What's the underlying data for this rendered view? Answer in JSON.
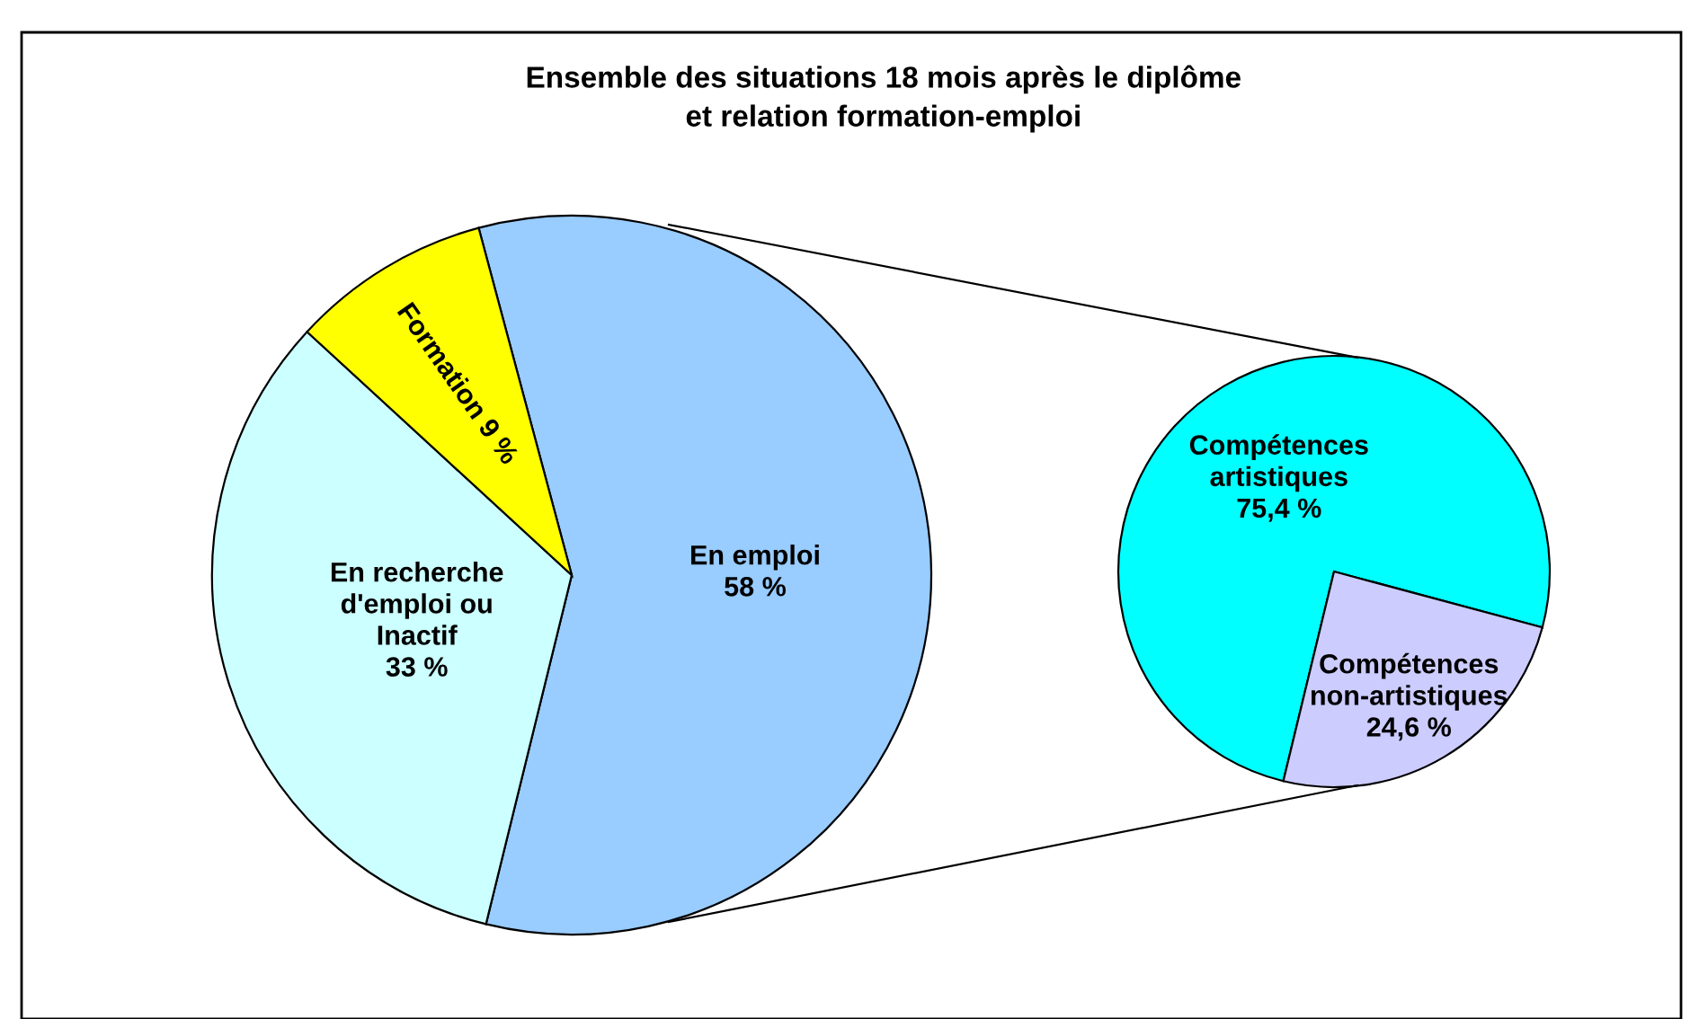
{
  "chart_data": [
    {
      "type": "pie",
      "title": "Ensemble des situations 18 mois après le diplôme\net relation formation-emploi",
      "categories": [
        "En emploi\n58 %",
        "En recherche\nd'emploi ou\nInactif\n33 %",
        "Formation 9 %"
      ],
      "values": [
        58,
        33,
        9
      ],
      "colors": [
        "#99ccff",
        "#ccffff",
        "#ffff00"
      ]
    },
    {
      "type": "pie",
      "categories": [
        "Compétences\nartistiques\n75,4 %",
        "Compétences\nnon-artistiques\n24,6 %"
      ],
      "values": [
        75.4,
        24.6
      ],
      "colors": [
        "#00ffff",
        "#ccccff"
      ]
    }
  ]
}
